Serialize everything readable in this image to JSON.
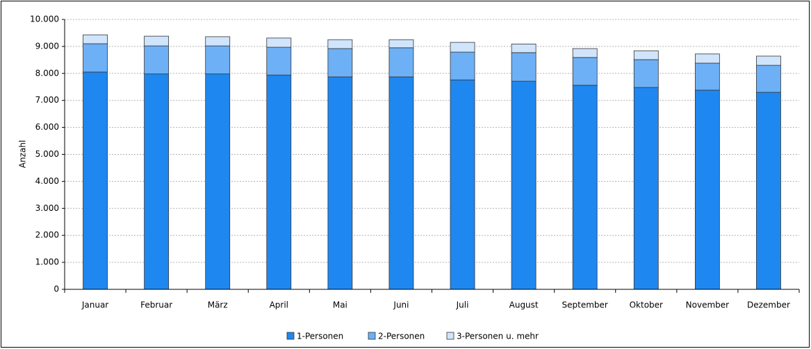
{
  "chart_data": {
    "type": "stacked_bar",
    "y_label": "Anzahl",
    "categories": [
      "Januar",
      "Februar",
      "März",
      "April",
      "Mai",
      "Juni",
      "Juli",
      "August",
      "September",
      "Oktober",
      "November",
      "Dezember"
    ],
    "series": [
      {
        "name": "1-Personen",
        "color": "#1f87f0",
        "values": [
          8050,
          7980,
          7980,
          7940,
          7870,
          7870,
          7760,
          7710,
          7560,
          7480,
          7380,
          7300
        ]
      },
      {
        "name": "2-Personen",
        "color": "#6db0f5",
        "values": [
          1050,
          1040,
          1040,
          1030,
          1050,
          1080,
          1030,
          1060,
          1030,
          1030,
          1000,
          1000
        ]
      },
      {
        "name": "3-Personen u. mehr",
        "color": "#d0e4fb",
        "values": [
          330,
          360,
          340,
          340,
          330,
          300,
          360,
          320,
          330,
          330,
          340,
          340
        ]
      }
    ],
    "ylim": [
      0,
      10000
    ],
    "yticks": [
      0,
      {
        "value": 1000,
        "label": "1.000"
      },
      {
        "value": 2000,
        "label": "2.000"
      },
      {
        "value": 3000,
        "label": "3.000"
      },
      {
        "value": 4000,
        "label": "4.000"
      },
      {
        "value": 5000,
        "label": "5.000"
      },
      {
        "value": 6000,
        "label": "6.000"
      },
      {
        "value": 7000,
        "label": "7.000"
      },
      {
        "value": 8000,
        "label": "8.000"
      },
      {
        "value": 9000,
        "label": "9.000"
      },
      {
        "value": 10000,
        "label": "10.000"
      }
    ],
    "grid": true,
    "legend": "bottom"
  }
}
